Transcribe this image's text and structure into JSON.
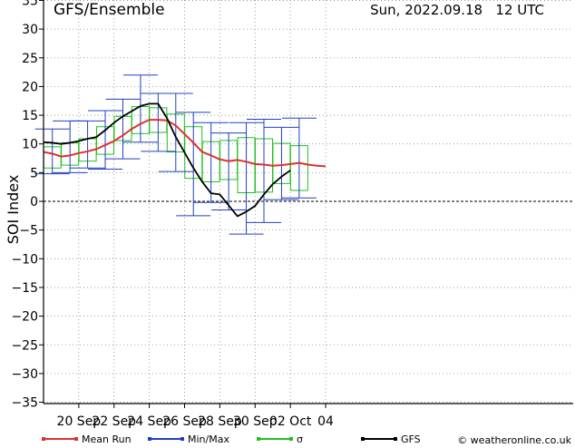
{
  "header": {
    "title": "GFS/Ensemble",
    "run": "Sun, 2022.09.18   12 UTC"
  },
  "credit": "© weatheronline.co.uk",
  "colors": {
    "mean": "#e03030",
    "minmax": "#2040c0",
    "sigma": "#20c020",
    "gfs": "#000000",
    "grid": "#888888"
  },
  "chart_data": {
    "type": "line",
    "title": "GFS/Ensemble",
    "xlabel": "",
    "ylabel": "SOI Index",
    "ylim": [
      -35,
      35
    ],
    "y_ticks": [
      -35,
      -30,
      -25,
      -20,
      -15,
      -10,
      -5,
      0,
      5,
      10,
      15,
      20,
      25,
      30,
      35
    ],
    "x_tick_labels": [
      "20 Sep",
      "22 Sep",
      "24 Sep",
      "26 Sep",
      "28 Sep",
      "30 Sep",
      "02 Oct",
      "04"
    ],
    "x_tick_steps": [
      4,
      8,
      12,
      16,
      20,
      24,
      28,
      32
    ],
    "legend": [
      "Mean Run",
      "Min/Max",
      "σ",
      "GFS"
    ],
    "legend_position": "bottom",
    "grid": true,
    "steps": [
      0,
      1,
      2,
      3,
      4,
      5,
      6,
      7,
      8,
      9,
      10,
      11,
      12,
      13,
      14,
      15,
      16,
      17,
      18,
      19,
      20,
      21,
      22,
      23,
      24,
      25,
      26,
      27,
      28,
      29,
      30,
      31,
      32
    ],
    "series": [
      {
        "name": "Mean Run",
        "values": [
          8.6,
          8.3,
          7.8,
          8.0,
          8.4,
          8.7,
          9.1,
          9.8,
          10.5,
          11.5,
          12.6,
          13.5,
          14.2,
          14.2,
          14.1,
          13.2,
          11.7,
          10.2,
          8.6,
          8.0,
          7.3,
          7.0,
          7.2,
          6.9,
          6.5,
          6.4,
          6.2,
          6.3,
          6.5,
          6.7,
          6.4,
          6.2,
          6.1
        ]
      },
      {
        "name": "GFS",
        "values": [
          10.3,
          10.2,
          10.0,
          10.2,
          10.5,
          10.9,
          11.2,
          12.4,
          13.7,
          14.8,
          15.7,
          16.6,
          17.0,
          17.0,
          14.5,
          11.2,
          8.5,
          5.8,
          3.4,
          1.4,
          1.2,
          -0.7,
          -2.6,
          -1.8,
          -0.8,
          1.2,
          3.0,
          4.3,
          5.4
        ]
      }
    ],
    "boxes": [
      {
        "step": 1,
        "min": 4.8,
        "max": 12.6,
        "sigma_low": 5.8,
        "sigma_high": 9.5
      },
      {
        "step": 3,
        "min": 5.0,
        "max": 14.0,
        "sigma_low": 6.3,
        "sigma_high": 10.2
      },
      {
        "step": 5,
        "min": 5.8,
        "max": 14.0,
        "sigma_low": 7.0,
        "sigma_high": 10.9
      },
      {
        "step": 7,
        "min": 5.6,
        "max": 15.8,
        "sigma_low": 8.2,
        "sigma_high": 13.0
      },
      {
        "step": 9,
        "min": 7.4,
        "max": 17.8,
        "sigma_low": 10.6,
        "sigma_high": 14.8
      },
      {
        "step": 11,
        "min": 10.3,
        "max": 22.0,
        "sigma_low": 11.8,
        "sigma_high": 16.5
      },
      {
        "step": 13,
        "min": 8.7,
        "max": 18.8,
        "sigma_low": 12.0,
        "sigma_high": 16.3
      },
      {
        "step": 15,
        "min": 5.2,
        "max": 18.8,
        "sigma_low": 8.6,
        "sigma_high": 15.2
      },
      {
        "step": 17,
        "min": -2.5,
        "max": 15.5,
        "sigma_low": 4.0,
        "sigma_high": 13.0
      },
      {
        "step": 19,
        "min": -0.2,
        "max": 13.7,
        "sigma_low": 3.4,
        "sigma_high": 10.4
      },
      {
        "step": 21,
        "min": -1.5,
        "max": 11.9,
        "sigma_low": 3.8,
        "sigma_high": 10.6
      },
      {
        "step": 23,
        "min": -5.7,
        "max": 13.7,
        "sigma_low": 1.5,
        "sigma_high": 11.1
      },
      {
        "step": 25,
        "min": -3.7,
        "max": 14.3,
        "sigma_low": 1.6,
        "sigma_high": 10.9
      },
      {
        "step": 27,
        "min": 0.3,
        "max": 12.9,
        "sigma_low": 3.1,
        "sigma_high": 10.1
      },
      {
        "step": 29,
        "min": 0.6,
        "max": 14.5,
        "sigma_low": 1.9,
        "sigma_high": 9.7
      }
    ]
  }
}
